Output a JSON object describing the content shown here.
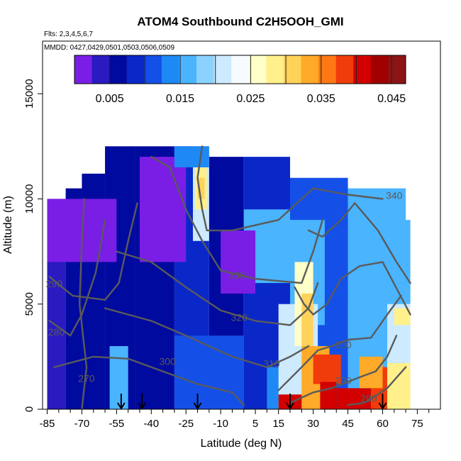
{
  "chart_data": {
    "type": "heatmap",
    "title": "ATOM4 Southbound C2H5OOH_GMI",
    "flights_note": "Flts: 2,3,4,5,6,7",
    "dates_note": "MMDD: 0427,0429,0501,0503,0506,0509",
    "xlabel": "Latitude (deg N)",
    "ylabel": "Altitude (m)",
    "xlim": [
      -87,
      85
    ],
    "ylim": [
      0,
      17500
    ],
    "x_ticks": [
      -85,
      -70,
      -55,
      -40,
      -25,
      -10,
      5,
      15,
      30,
      45,
      60,
      75
    ],
    "x_tick_labels": [
      "-85",
      "-70",
      "-55",
      "-40",
      "-25",
      "-10",
      "5",
      "15",
      "30",
      "45",
      "60",
      "75"
    ],
    "y_ticks": [
      0,
      5000,
      10000,
      15000
    ],
    "y_tick_labels": [
      "0",
      "5000",
      "10000",
      "15000"
    ],
    "colorbar": {
      "range": [
        0.0,
        0.047
      ],
      "ticks": [
        0.005,
        0.015,
        0.025,
        0.035,
        0.045
      ],
      "tick_labels": [
        "0.005",
        "0.015",
        "0.025",
        "0.035",
        "0.045"
      ],
      "colors": [
        "#7a1ee6",
        "#2a1ac0",
        "#000a9e",
        "#0a28c8",
        "#1450e8",
        "#1e88f5",
        "#4ab4ff",
        "#8cd2ff",
        "#cdeaff",
        "#f5fbff",
        "#ffffc8",
        "#fff08c",
        "#ffd25a",
        "#ffaa28",
        "#ff7814",
        "#f03c0a",
        "#d20000",
        "#a00000",
        "#8c1414"
      ]
    },
    "contour_levels": [
      270,
      280,
      290,
      300,
      310,
      320,
      330,
      340
    ],
    "contour_labels": [
      {
        "text": "290",
        "lat": -82,
        "alt": 5800
      },
      {
        "text": "280",
        "lat": -81,
        "alt": 3500
      },
      {
        "text": "270",
        "lat": -68,
        "alt": 1300
      },
      {
        "text": "300",
        "lat": -33,
        "alt": 2100
      },
      {
        "text": "310",
        "lat": 12,
        "alt": 2000
      },
      {
        "text": "320",
        "lat": -2,
        "alt": 4200
      },
      {
        "text": "330",
        "lat": -3,
        "alt": 6200
      },
      {
        "text": "340",
        "lat": 65,
        "alt": 10000
      },
      {
        "text": "300",
        "lat": 43,
        "alt": 2900
      },
      {
        "text": "290",
        "lat": 43,
        "alt": 1200
      },
      {
        "text": "280",
        "lat": 54,
        "alt": 350
      }
    ],
    "sounding_markers_lat": [
      -53,
      -44,
      -20,
      20,
      60
    ],
    "regions": [
      {
        "lat": [
          -85,
          -77
        ],
        "alt": [
          0,
          10000
        ],
        "value": 0.004
      },
      {
        "lat": [
          -77,
          -70
        ],
        "alt": [
          0,
          10500
        ],
        "value": 0.006
      },
      {
        "lat": [
          -70,
          -60
        ],
        "alt": [
          0,
          11200
        ],
        "value": 0.006
      },
      {
        "lat": [
          -60,
          -47
        ],
        "alt": [
          0,
          12500
        ],
        "value": 0.005
      },
      {
        "lat": [
          -47,
          -30
        ],
        "alt": [
          0,
          12500
        ],
        "value": 0.006
      },
      {
        "lat": [
          -30,
          -15
        ],
        "alt": [
          0,
          12500
        ],
        "value": 0.008
      },
      {
        "lat": [
          -15,
          0
        ],
        "alt": [
          0,
          12000
        ],
        "value": 0.005
      },
      {
        "lat": [
          0,
          20
        ],
        "alt": [
          0,
          12000
        ],
        "value": 0.009
      },
      {
        "lat": [
          20,
          45
        ],
        "alt": [
          0,
          11000
        ],
        "value": 0.012
      },
      {
        "lat": [
          45,
          70
        ],
        "alt": [
          0,
          10500
        ],
        "value": 0.015
      },
      {
        "lat": [
          -85,
          -55
        ],
        "alt": [
          7000,
          10000
        ],
        "value": 0.002
      },
      {
        "lat": [
          -45,
          -25
        ],
        "alt": [
          7000,
          12000
        ],
        "value": 0.002
      },
      {
        "lat": [
          -22,
          -15
        ],
        "alt": [
          8000,
          12500
        ],
        "value": 0.022
      },
      {
        "lat": [
          -21,
          -16
        ],
        "alt": [
          9500,
          11500
        ],
        "value": 0.028
      },
      {
        "lat": [
          -20,
          -17
        ],
        "alt": [
          10000,
          11000
        ],
        "value": 0.032
      },
      {
        "lat": [
          -30,
          -15
        ],
        "alt": [
          11500,
          12500
        ],
        "value": 0.014
      },
      {
        "lat": [
          0,
          20
        ],
        "alt": [
          6000,
          9500
        ],
        "value": 0.016
      },
      {
        "lat": [
          20,
          35
        ],
        "alt": [
          4000,
          9000
        ],
        "value": 0.016
      },
      {
        "lat": [
          45,
          72
        ],
        "alt": [
          5000,
          9000
        ],
        "value": 0.017
      },
      {
        "lat": [
          -10,
          5
        ],
        "alt": [
          5500,
          8500
        ],
        "value": 0.002
      },
      {
        "lat": [
          -58,
          -50
        ],
        "alt": [
          0,
          3000
        ],
        "value": 0.017
      },
      {
        "lat": [
          -30,
          0
        ],
        "alt": [
          0,
          3500
        ],
        "value": 0.012
      },
      {
        "lat": [
          10,
          20
        ],
        "alt": [
          0,
          2000
        ],
        "value": 0.014
      },
      {
        "lat": [
          15,
          32
        ],
        "alt": [
          0,
          5000
        ],
        "value": 0.022
      },
      {
        "lat": [
          22,
          30
        ],
        "alt": [
          3000,
          7000
        ],
        "value": 0.026
      },
      {
        "lat": [
          25,
          30
        ],
        "alt": [
          3000,
          5500
        ],
        "value": 0.03
      },
      {
        "lat": [
          25,
          37
        ],
        "alt": [
          0,
          3000
        ],
        "value": 0.033
      },
      {
        "lat": [
          30,
          42
        ],
        "alt": [
          1200,
          2600
        ],
        "value": 0.038
      },
      {
        "lat": [
          33,
          40
        ],
        "alt": [
          0,
          1300
        ],
        "value": 0.042
      },
      {
        "lat": [
          15,
          25
        ],
        "alt": [
          0,
          700
        ],
        "value": 0.042
      },
      {
        "lat": [
          40,
          55
        ],
        "alt": [
          0,
          1000
        ],
        "value": 0.041
      },
      {
        "lat": [
          55,
          62
        ],
        "alt": [
          0,
          2000
        ],
        "value": 0.038
      },
      {
        "lat": [
          50,
          60
        ],
        "alt": [
          1000,
          2500
        ],
        "value": 0.033
      },
      {
        "lat": [
          62,
          72
        ],
        "alt": [
          0,
          2200
        ],
        "value": 0.029
      },
      {
        "lat": [
          62,
          72
        ],
        "alt": [
          2200,
          5000
        ],
        "value": 0.022
      },
      {
        "lat": [
          65,
          72
        ],
        "alt": [
          4000,
          4800
        ],
        "value": 0.028
      }
    ],
    "contour_lines": [
      {
        "level": 270,
        "points": [
          [
            -70,
            0
          ],
          [
            -68,
            2000
          ],
          [
            -71,
            5000
          ],
          [
            -70,
            8000
          ],
          [
            -69,
            10000
          ]
        ]
      },
      {
        "level": 280,
        "points": [
          [
            -84,
            4200
          ],
          [
            -75,
            3500
          ],
          [
            -70,
            4500
          ],
          [
            -64,
            6500
          ],
          [
            -60,
            9000
          ]
        ]
      },
      {
        "level": 290,
        "points": [
          [
            -84,
            6300
          ],
          [
            -74,
            5400
          ],
          [
            -60,
            5200
          ],
          [
            -54,
            6000
          ],
          [
            -50,
            8000
          ],
          [
            -46,
            9800
          ]
        ]
      },
      {
        "level": 300,
        "points": [
          [
            -82,
            2000
          ],
          [
            -65,
            2500
          ],
          [
            -50,
            2400
          ],
          [
            -35,
            1800
          ],
          [
            -20,
            1200
          ],
          [
            -5,
            800
          ],
          [
            0,
            200
          ]
        ]
      },
      {
        "level": 310,
        "points": [
          [
            -60,
            4800
          ],
          [
            -40,
            4200
          ],
          [
            -25,
            3500
          ],
          [
            -5,
            2500
          ],
          [
            10,
            2000
          ],
          [
            20,
            2500
          ],
          [
            28,
            3000
          ]
        ]
      },
      {
        "level": 320,
        "points": [
          [
            -55,
            7500
          ],
          [
            -40,
            7000
          ],
          [
            -25,
            5800
          ],
          [
            -10,
            4700
          ],
          [
            5,
            4200
          ],
          [
            20,
            4000
          ],
          [
            28,
            4800
          ],
          [
            32,
            6000
          ]
        ]
      },
      {
        "level": 330,
        "points": [
          [
            -40,
            12000
          ],
          [
            -32,
            11500
          ],
          [
            -25,
            9500
          ],
          [
            -18,
            8000
          ],
          [
            -10,
            6600
          ],
          [
            5,
            6200
          ],
          [
            25,
            6000
          ],
          [
            30,
            7500
          ],
          [
            34,
            9000
          ]
        ]
      },
      {
        "level": 340,
        "points": [
          [
            -18,
            12500
          ],
          [
            -20,
            11000
          ],
          [
            -18,
            9500
          ],
          [
            -16,
            8500
          ],
          [
            -5,
            8500
          ],
          [
            15,
            9000
          ],
          [
            30,
            10500
          ],
          [
            45,
            10200
          ],
          [
            60,
            10000
          ]
        ]
      },
      {
        "level": 300,
        "points": [
          [
            15,
            900
          ],
          [
            25,
            2000
          ],
          [
            32,
            2800
          ],
          [
            38,
            3000
          ],
          [
            45,
            3300
          ],
          [
            55,
            3400
          ],
          [
            62,
            4500
          ],
          [
            68,
            5400
          ]
        ]
      },
      {
        "level": 290,
        "points": [
          [
            20,
            300
          ],
          [
            30,
            800
          ],
          [
            38,
            1000
          ],
          [
            45,
            1300
          ],
          [
            52,
            1600
          ],
          [
            57,
            1800
          ],
          [
            62,
            2500
          ],
          [
            66,
            3500
          ]
        ]
      },
      {
        "level": 280,
        "points": [
          [
            45,
            200
          ],
          [
            52,
            300
          ],
          [
            58,
            700
          ],
          [
            62,
            1000
          ],
          [
            66,
            1500
          ],
          [
            70,
            2000
          ]
        ]
      },
      {
        "level": 310,
        "points": [
          [
            22,
            5800
          ],
          [
            26,
            5000
          ],
          [
            30,
            4500
          ],
          [
            36,
            5000
          ],
          [
            42,
            6200
          ],
          [
            50,
            6800
          ],
          [
            60,
            7000
          ],
          [
            72,
            4500
          ]
        ]
      },
      {
        "level": 320,
        "points": [
          [
            28,
            8500
          ],
          [
            34,
            8200
          ],
          [
            42,
            9000
          ],
          [
            48,
            9800
          ],
          [
            58,
            8500
          ],
          [
            66,
            7000
          ],
          [
            72,
            6000
          ]
        ]
      }
    ]
  }
}
